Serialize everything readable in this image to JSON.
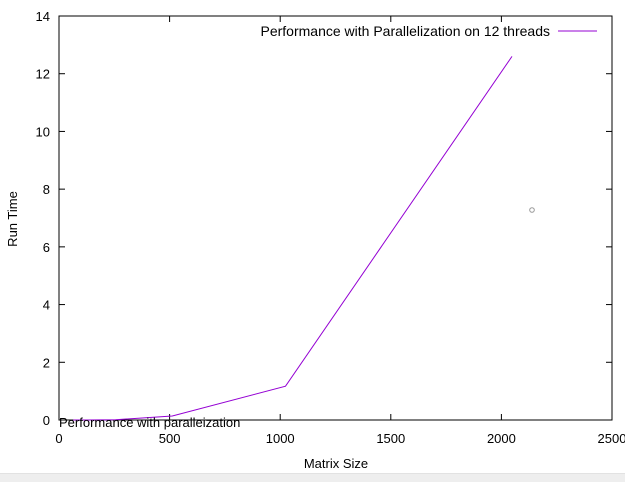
{
  "chart_data": {
    "type": "line",
    "title": "Performance with paralleization",
    "xlabel": "Matrix Size",
    "ylabel": "Run Time",
    "xlim": [
      0,
      2500
    ],
    "ylim": [
      0,
      14
    ],
    "x_ticks": [
      "0",
      "500",
      "1000",
      "1500",
      "2000",
      "2500"
    ],
    "y_ticks": [
      "0",
      "2",
      "4",
      "6",
      "8",
      "10",
      "12",
      "14"
    ],
    "grid": false,
    "legend_position": "top-right",
    "series": [
      {
        "name": "Performance with Parallelization on 12 threads",
        "color": "#9400d3",
        "x": [
          64,
          128,
          256,
          512,
          1024,
          2048
        ],
        "y": [
          0.0,
          0.0,
          0.01,
          0.14,
          1.17,
          12.6
        ]
      }
    ]
  }
}
